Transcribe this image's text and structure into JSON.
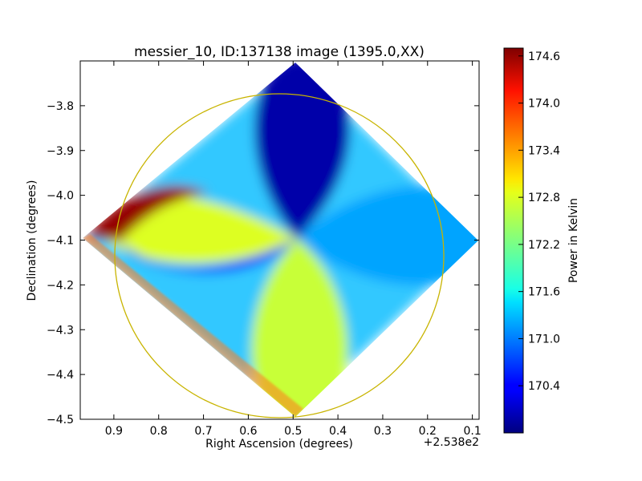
{
  "chart_data": {
    "type": "heatmap",
    "title": "messier_10, ID:137138 image (1395.0,XX)",
    "xlabel": "Right Ascension (degrees)",
    "ylabel": "Declination (degrees)",
    "x_offset_label": "+2.538e2",
    "xlim": [
      0.975,
      0.085
    ],
    "ylim": [
      -4.5,
      -3.7
    ],
    "xticks": [
      {
        "value": 0.9,
        "label": "0.9"
      },
      {
        "value": 0.8,
        "label": "0.8"
      },
      {
        "value": 0.7,
        "label": "0.7"
      },
      {
        "value": 0.6,
        "label": "0.6"
      },
      {
        "value": 0.5,
        "label": "0.5"
      },
      {
        "value": 0.4,
        "label": "0.4"
      },
      {
        "value": 0.3,
        "label": "0.3"
      },
      {
        "value": 0.2,
        "label": "0.2"
      },
      {
        "value": 0.1,
        "label": "0.1"
      }
    ],
    "yticks": [
      {
        "value": -3.8,
        "label": "−3.8"
      },
      {
        "value": -3.9,
        "label": "−3.9"
      },
      {
        "value": -4.0,
        "label": "−4.0"
      },
      {
        "value": -4.1,
        "label": "−4.1"
      },
      {
        "value": -4.2,
        "label": "−4.2"
      },
      {
        "value": -4.3,
        "label": "−4.3"
      },
      {
        "value": -4.4,
        "label": "−4.4"
      },
      {
        "value": -4.5,
        "label": "−4.5"
      }
    ],
    "colorbar": {
      "label": "Power in Kelvin",
      "range": [
        169.8,
        174.7
      ],
      "colormap": "jet",
      "ticks": [
        {
          "value": 170.4,
          "label": "170.4"
        },
        {
          "value": 171.0,
          "label": "171.0"
        },
        {
          "value": 171.6,
          "label": "171.6"
        },
        {
          "value": 172.2,
          "label": "172.2"
        },
        {
          "value": 172.8,
          "label": "172.8"
        },
        {
          "value": 173.4,
          "label": "173.4"
        },
        {
          "value": 174.0,
          "label": "174.0"
        },
        {
          "value": 174.6,
          "label": "174.6"
        }
      ]
    },
    "field": {
      "center": {
        "ra": 0.48,
        "dec": -4.1
      },
      "corners": [
        {
          "name": "top",
          "ra": 0.48,
          "dec": -3.7
        },
        {
          "name": "right",
          "ra": 0.087,
          "dec": -4.1
        },
        {
          "name": "bottom",
          "ra": 0.48,
          "dec": -4.5
        },
        {
          "name": "left",
          "ra": 0.97,
          "dec": -4.1
        }
      ],
      "regions": [
        {
          "name": "upper lobe",
          "value": 170.0
        },
        {
          "name": "right lobe",
          "value": 171.2
        },
        {
          "name": "left lobe",
          "value": 172.7
        },
        {
          "name": "lower lobe",
          "value": 172.6
        },
        {
          "name": "left edge hotspot",
          "value": 174.6
        }
      ]
    },
    "overlay_circle": {
      "center_ra": 0.53,
      "center_dec": -4.135,
      "radius_deg": 0.365,
      "color": "#c8b400"
    },
    "grid": false
  }
}
